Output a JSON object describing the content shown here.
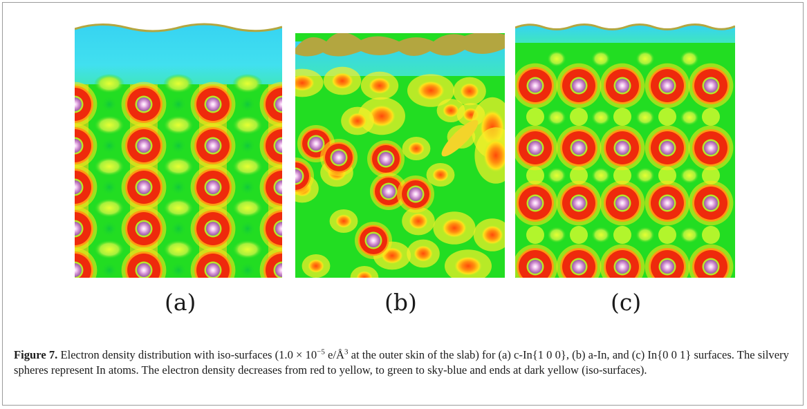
{
  "panels": [
    {
      "id": "a",
      "label": "(a)"
    },
    {
      "id": "b",
      "label": "(b)"
    },
    {
      "id": "c",
      "label": "(c)"
    }
  ],
  "caption": {
    "figure_label": "Figure 7.",
    "text_1": " Electron density distribution with iso-surfaces (1.0 × 10",
    "exponent_1": "−5",
    "text_2": " e/Å",
    "exponent_2": "3",
    "text_3": " at the outer skin of the slab) for (a) c-In{1 0 0}, (b) a-In, and (c) In{0 0 1} surfaces. The silvery spheres represent In atoms. The electron density decreases from red to yellow, to green to sky-blue and ends at dark yellow (iso-surfaces)."
  },
  "colors": {
    "background_green": "#22dd22",
    "vacuum_skyblue": "#3ddcee",
    "isosurface_dark_yellow": "#b3a640",
    "high_density_red": "#ee2a0c",
    "atom_silver_pink": "#e9b6e6"
  }
}
